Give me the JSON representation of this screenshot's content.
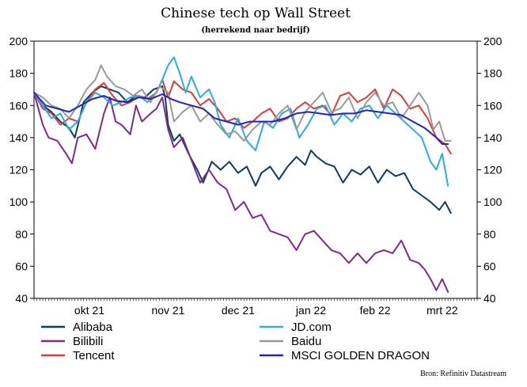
{
  "chart_data": {
    "type": "line",
    "title": "Chinese tech op Wall Street",
    "subtitle": "(herrekend naar bedrijf)",
    "ylim": [
      40,
      200
    ],
    "yticks": [
      40,
      60,
      80,
      100,
      120,
      140,
      160,
      180,
      200
    ],
    "xlim": [
      0,
      152
    ],
    "x_tick_labels": [
      {
        "label": "okt 21",
        "x": 19
      },
      {
        "label": "nov 21",
        "x": 46
      },
      {
        "label": "dec 21",
        "x": 70
      },
      {
        "label": "jan 22",
        "x": 95
      },
      {
        "label": "feb 22",
        "x": 117
      },
      {
        "label": "mrt 22",
        "x": 140
      }
    ],
    "series": [
      {
        "name": "Alibaba",
        "color": "#0d3b66",
        "points": [
          [
            0,
            168
          ],
          [
            3,
            160
          ],
          [
            6,
            156
          ],
          [
            9,
            150
          ],
          [
            12,
            146
          ],
          [
            14,
            140
          ],
          [
            17,
            162
          ],
          [
            20,
            168
          ],
          [
            23,
            172
          ],
          [
            26,
            170
          ],
          [
            29,
            168
          ],
          [
            32,
            162
          ],
          [
            35,
            166
          ],
          [
            38,
            165
          ],
          [
            41,
            170
          ],
          [
            44,
            172
          ],
          [
            45,
            165
          ],
          [
            46,
            148
          ],
          [
            48,
            138
          ],
          [
            50,
            142
          ],
          [
            53,
            130
          ],
          [
            56,
            120
          ],
          [
            58,
            112
          ],
          [
            61,
            125
          ],
          [
            64,
            120
          ],
          [
            67,
            125
          ],
          [
            70,
            118
          ],
          [
            73,
            122
          ],
          [
            76,
            110
          ],
          [
            78,
            118
          ],
          [
            81,
            122
          ],
          [
            84,
            114
          ],
          [
            87,
            122
          ],
          [
            90,
            128
          ],
          [
            93,
            123
          ],
          [
            95,
            132
          ],
          [
            97,
            128
          ],
          [
            100,
            124
          ],
          [
            103,
            122
          ],
          [
            106,
            112
          ],
          [
            109,
            120
          ],
          [
            112,
            117
          ],
          [
            115,
            122
          ],
          [
            118,
            112
          ],
          [
            121,
            120
          ],
          [
            124,
            116
          ],
          [
            127,
            118
          ],
          [
            130,
            108
          ],
          [
            133,
            104
          ],
          [
            136,
            100
          ],
          [
            139,
            95
          ],
          [
            141,
            100
          ],
          [
            143,
            93
          ]
        ]
      },
      {
        "name": "Bilibili",
        "color": "#7d2a90",
        "points": [
          [
            0,
            168
          ],
          [
            3,
            148
          ],
          [
            5,
            140
          ],
          [
            8,
            138
          ],
          [
            11,
            130
          ],
          [
            13,
            124
          ],
          [
            15,
            140
          ],
          [
            18,
            142
          ],
          [
            21,
            133
          ],
          [
            24,
            155
          ],
          [
            26,
            165
          ],
          [
            28,
            150
          ],
          [
            30,
            148
          ],
          [
            33,
            142
          ],
          [
            35,
            160
          ],
          [
            37,
            150
          ],
          [
            40,
            155
          ],
          [
            42,
            158
          ],
          [
            44,
            165
          ],
          [
            46,
            145
          ],
          [
            48,
            134
          ],
          [
            51,
            140
          ],
          [
            54,
            126
          ],
          [
            57,
            112
          ],
          [
            60,
            120
          ],
          [
            63,
            112
          ],
          [
            66,
            108
          ],
          [
            69,
            95
          ],
          [
            72,
            100
          ],
          [
            75,
            90
          ],
          [
            78,
            92
          ],
          [
            81,
            82
          ],
          [
            84,
            80
          ],
          [
            87,
            78
          ],
          [
            90,
            70
          ],
          [
            93,
            80
          ],
          [
            96,
            82
          ],
          [
            99,
            76
          ],
          [
            102,
            70
          ],
          [
            105,
            68
          ],
          [
            108,
            62
          ],
          [
            111,
            68
          ],
          [
            114,
            62
          ],
          [
            117,
            68
          ],
          [
            120,
            70
          ],
          [
            123,
            68
          ],
          [
            126,
            76
          ],
          [
            129,
            64
          ],
          [
            132,
            62
          ],
          [
            134,
            58
          ],
          [
            136,
            52
          ],
          [
            138,
            45
          ],
          [
            140,
            52
          ],
          [
            142,
            44
          ]
        ]
      },
      {
        "name": "Tencent",
        "color": "#e53935",
        "points": [
          [
            0,
            168
          ],
          [
            3,
            158
          ],
          [
            6,
            155
          ],
          [
            9,
            148
          ],
          [
            12,
            152
          ],
          [
            15,
            150
          ],
          [
            18,
            162
          ],
          [
            21,
            170
          ],
          [
            24,
            174
          ],
          [
            27,
            166
          ],
          [
            30,
            160
          ],
          [
            33,
            162
          ],
          [
            36,
            166
          ],
          [
            39,
            164
          ],
          [
            42,
            168
          ],
          [
            44,
            176
          ],
          [
            46,
            165
          ],
          [
            48,
            175
          ],
          [
            51,
            170
          ],
          [
            54,
            168
          ],
          [
            57,
            160
          ],
          [
            60,
            164
          ],
          [
            63,
            158
          ],
          [
            66,
            150
          ],
          [
            69,
            152
          ],
          [
            72,
            146
          ],
          [
            75,
            150
          ],
          [
            78,
            155
          ],
          [
            81,
            158
          ],
          [
            84,
            150
          ],
          [
            87,
            152
          ],
          [
            90,
            158
          ],
          [
            93,
            162
          ],
          [
            96,
            158
          ],
          [
            99,
            160
          ],
          [
            102,
            154
          ],
          [
            105,
            166
          ],
          [
            108,
            168
          ],
          [
            111,
            162
          ],
          [
            114,
            165
          ],
          [
            117,
            170
          ],
          [
            120,
            158
          ],
          [
            123,
            170
          ],
          [
            126,
            166
          ],
          [
            129,
            158
          ],
          [
            132,
            160
          ],
          [
            135,
            152
          ],
          [
            138,
            140
          ],
          [
            141,
            136
          ],
          [
            143,
            130
          ]
        ]
      },
      {
        "name": "JD.com",
        "color": "#29aee0",
        "points": [
          [
            0,
            168
          ],
          [
            3,
            160
          ],
          [
            6,
            152
          ],
          [
            9,
            155
          ],
          [
            12,
            145
          ],
          [
            15,
            150
          ],
          [
            18,
            162
          ],
          [
            21,
            168
          ],
          [
            24,
            165
          ],
          [
            27,
            160
          ],
          [
            30,
            162
          ],
          [
            33,
            165
          ],
          [
            36,
            166
          ],
          [
            39,
            162
          ],
          [
            42,
            168
          ],
          [
            44,
            176
          ],
          [
            46,
            185
          ],
          [
            48,
            190
          ],
          [
            50,
            180
          ],
          [
            52,
            168
          ],
          [
            54,
            178
          ],
          [
            57,
            165
          ],
          [
            60,
            170
          ],
          [
            62,
            162
          ],
          [
            64,
            148
          ],
          [
            67,
            140
          ],
          [
            70,
            152
          ],
          [
            73,
            138
          ],
          [
            76,
            132
          ],
          [
            79,
            150
          ],
          [
            82,
            146
          ],
          [
            85,
            155
          ],
          [
            88,
            158
          ],
          [
            91,
            140
          ],
          [
            94,
            148
          ],
          [
            97,
            158
          ],
          [
            100,
            160
          ],
          [
            103,
            148
          ],
          [
            106,
            155
          ],
          [
            109,
            150
          ],
          [
            112,
            158
          ],
          [
            115,
            160
          ],
          [
            118,
            152
          ],
          [
            121,
            160
          ],
          [
            124,
            155
          ],
          [
            127,
            150
          ],
          [
            130,
            145
          ],
          [
            133,
            140
          ],
          [
            136,
            125
          ],
          [
            138,
            120
          ],
          [
            140,
            130
          ],
          [
            142,
            110
          ]
        ]
      },
      {
        "name": "Baidu",
        "color": "#999999",
        "points": [
          [
            0,
            168
          ],
          [
            3,
            165
          ],
          [
            6,
            160
          ],
          [
            9,
            158
          ],
          [
            12,
            152
          ],
          [
            15,
            160
          ],
          [
            18,
            170
          ],
          [
            21,
            176
          ],
          [
            23,
            185
          ],
          [
            25,
            178
          ],
          [
            28,
            172
          ],
          [
            31,
            170
          ],
          [
            34,
            166
          ],
          [
            37,
            170
          ],
          [
            40,
            162
          ],
          [
            43,
            172
          ],
          [
            46,
            168
          ],
          [
            48,
            150
          ],
          [
            51,
            156
          ],
          [
            54,
            160
          ],
          [
            57,
            150
          ],
          [
            60,
            155
          ],
          [
            63,
            148
          ],
          [
            66,
            142
          ],
          [
            69,
            144
          ],
          [
            72,
            138
          ],
          [
            75,
            145
          ],
          [
            78,
            150
          ],
          [
            81,
            148
          ],
          [
            84,
            155
          ],
          [
            87,
            160
          ],
          [
            90,
            145
          ],
          [
            93,
            156
          ],
          [
            96,
            162
          ],
          [
            99,
            168
          ],
          [
            102,
            156
          ],
          [
            105,
            158
          ],
          [
            108,
            165
          ],
          [
            111,
            152
          ],
          [
            114,
            162
          ],
          [
            117,
            168
          ],
          [
            120,
            160
          ],
          [
            123,
            162
          ],
          [
            126,
            152
          ],
          [
            129,
            160
          ],
          [
            132,
            168
          ],
          [
            135,
            160
          ],
          [
            137,
            145
          ],
          [
            139,
            150
          ],
          [
            141,
            138
          ],
          [
            143,
            138
          ]
        ]
      },
      {
        "name": "MSCI GOLDEN DRAGON",
        "color": "#2222c8",
        "points": [
          [
            0,
            168
          ],
          [
            4,
            160
          ],
          [
            8,
            158
          ],
          [
            12,
            156
          ],
          [
            16,
            160
          ],
          [
            20,
            164
          ],
          [
            24,
            166
          ],
          [
            28,
            163
          ],
          [
            32,
            162
          ],
          [
            36,
            165
          ],
          [
            40,
            164
          ],
          [
            44,
            167
          ],
          [
            47,
            164
          ],
          [
            50,
            162
          ],
          [
            54,
            160
          ],
          [
            58,
            158
          ],
          [
            62,
            152
          ],
          [
            66,
            150
          ],
          [
            70,
            148
          ],
          [
            74,
            150
          ],
          [
            78,
            150
          ],
          [
            82,
            150
          ],
          [
            86,
            152
          ],
          [
            90,
            155
          ],
          [
            94,
            156
          ],
          [
            98,
            155
          ],
          [
            102,
            154
          ],
          [
            106,
            155
          ],
          [
            110,
            155
          ],
          [
            114,
            157
          ],
          [
            118,
            156
          ],
          [
            122,
            155
          ],
          [
            126,
            154
          ],
          [
            130,
            150
          ],
          [
            134,
            146
          ],
          [
            138,
            140
          ],
          [
            140,
            136
          ],
          [
            142,
            136
          ]
        ]
      }
    ],
    "legend": [
      {
        "label": "Alibaba",
        "color": "#0d3b66"
      },
      {
        "label": "JD.com",
        "color": "#29aee0"
      },
      {
        "label": "Bilibili",
        "color": "#7d2a90"
      },
      {
        "label": "Baidu",
        "color": "#999999"
      },
      {
        "label": "Tencent",
        "color": "#e53935"
      },
      {
        "label": "MSCI GOLDEN DRAGON",
        "color": "#2222c8"
      }
    ],
    "legend_placement": "bottom",
    "source": "Bron: Refinitiv Datastream",
    "grid": false
  }
}
